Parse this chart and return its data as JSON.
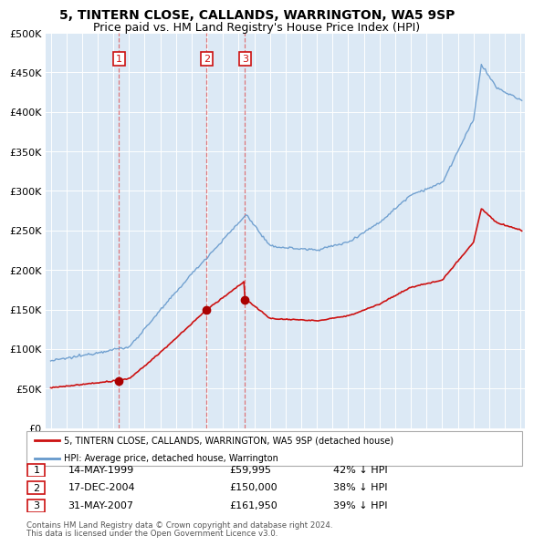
{
  "title": "5, TINTERN CLOSE, CALLANDS, WARRINGTON, WA5 9SP",
  "subtitle": "Price paid vs. HM Land Registry's House Price Index (HPI)",
  "title_fontsize": 10,
  "subtitle_fontsize": 9,
  "sale_date_nums": [
    1999.37,
    2004.96,
    2007.41
  ],
  "sale_prices": [
    59995,
    150000,
    161950
  ],
  "sale_labels": [
    "1",
    "2",
    "3"
  ],
  "sale_dates_str": [
    "14-MAY-1999",
    "17-DEC-2004",
    "31-MAY-2007"
  ],
  "sale_prices_str": [
    "£59,995",
    "£150,000",
    "£161,950"
  ],
  "sale_hpi_str": [
    "42% ↓ HPI",
    "38% ↓ HPI",
    "39% ↓ HPI"
  ],
  "vline_color": "#dd4444",
  "hpi_line_color": "#6699cc",
  "price_line_color": "#cc1111",
  "marker_color": "#aa0000",
  "label_box_facecolor": "#ffffff",
  "label_box_edgecolor": "#cc1111",
  "background_color": "#ffffff",
  "plot_bg_color": "#dce9f5",
  "grid_color": "#ffffff",
  "ylim": [
    0,
    500000
  ],
  "xlim_left": 1994.7,
  "xlim_right": 2025.3,
  "legend_entry1": "5, TINTERN CLOSE, CALLANDS, WARRINGTON, WA5 9SP (detached house)",
  "legend_entry2": "HPI: Average price, detached house, Warrington",
  "footer1": "Contains HM Land Registry data © Crown copyright and database right 2024.",
  "footer2": "This data is licensed under the Open Government Licence v3.0."
}
